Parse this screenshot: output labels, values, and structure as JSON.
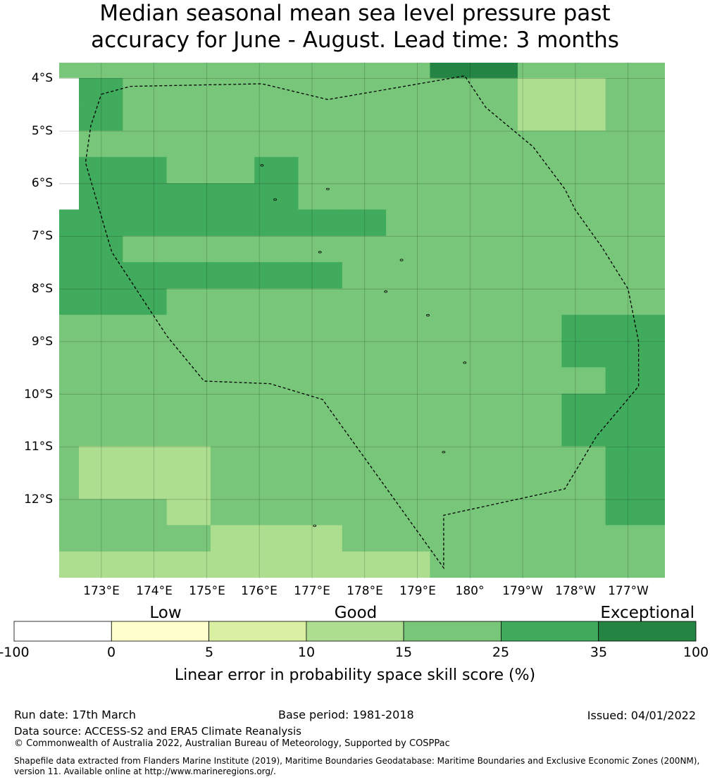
{
  "title": {
    "line1": "Median seasonal mean sea level pressure past",
    "line2": "accuracy for June - August. Lead time: 3 months"
  },
  "map": {
    "lat_labels": [
      "4°S",
      "5°S",
      "6°S",
      "7°S",
      "8°S",
      "9°S",
      "10°S",
      "11°S",
      "12°S"
    ],
    "lon_labels": [
      "173°E",
      "174°E",
      "175°E",
      "176°E",
      "177°E",
      "178°E",
      "179°E",
      "180°",
      "179°W",
      "178°W",
      "177°W"
    ],
    "lat_range": [
      -13.5,
      -3.7
    ],
    "lon_range": [
      172.2,
      183.7
    ],
    "grid_cell_deg": 0.833,
    "category_colors": [
      "#ffffff",
      "#ffffcc",
      "#d9f0a3",
      "#addd8e",
      "#78c679",
      "#41ab5d",
      "#238443"
    ],
    "cell_categories": [
      "8888888886688888",
      "0588888888833888",
      "0584444988833888",
      "0844444488888888",
      "0558858888888888",
      "0555554444448888",
      "5555555588888888",
      "5588888888888885",
      "5555555888888885",
      "5558888888888885",
      "8888888888885555",
      "8888888888885555",
      "8888888888888555",
      "8888888888885555",
      "8888888888885555",
      "8333888888888555",
      "8333888888888555",
      "8883888888888555",
      "8888333888888888",
      "3333333338888888",
      "0000000000000000"
    ],
    "eez_boundary": [
      [
        173.0,
        -4.3
      ],
      [
        173.55,
        -4.15
      ],
      [
        176.05,
        -4.1
      ],
      [
        177.3,
        -4.4
      ],
      [
        179.9,
        -3.95
      ],
      [
        180.3,
        -4.55
      ],
      [
        181.2,
        -5.3
      ],
      [
        181.8,
        -6.1
      ],
      [
        182.0,
        -6.5
      ],
      [
        182.5,
        -7.2
      ],
      [
        183.0,
        -8.0
      ],
      [
        183.2,
        -9.0
      ],
      [
        183.2,
        -9.85
      ],
      [
        182.4,
        -10.8
      ],
      [
        181.8,
        -11.8
      ],
      [
        179.5,
        -12.3
      ],
      [
        179.5,
        -13.3
      ],
      [
        177.2,
        -10.1
      ],
      [
        176.2,
        -9.8
      ],
      [
        174.95,
        -9.75
      ],
      [
        174.25,
        -8.9
      ],
      [
        173.2,
        -7.3
      ],
      [
        172.7,
        -5.6
      ],
      [
        172.8,
        -4.9
      ],
      [
        173.0,
        -4.3
      ]
    ]
  },
  "colorbar": {
    "qualitative": [
      "Low",
      "Good",
      "Exceptional"
    ],
    "ticks": [
      "-100",
      "0",
      "5",
      "10",
      "15",
      "25",
      "35",
      "100"
    ],
    "colors": [
      "#ffffff",
      "#ffffcc",
      "#d9f0a3",
      "#addd8e",
      "#78c679",
      "#41ab5d",
      "#238443"
    ],
    "label": "Linear error in probability space skill score (%)"
  },
  "footer": {
    "run_date": "Run date: 17th March",
    "base_period": "Base period: 1981-2018",
    "issued": "Issued: 04/01/2022",
    "data_source": "Data source: ACCESS-S2 and ERA5 Climate Reanalysis",
    "copyright": "© Commonwealth of Australia 2022, Australian Bureau of Meteorology, Supported by COSPPac",
    "shapefile_note": "Shapefile data extracted from Flanders Marine Institute (2019), Maritime Boundaries Geodatabase: Maritime Boundaries and Exclusive Economic Zones (200NM), version 11. Available online at http://www.marineregions.org/."
  }
}
